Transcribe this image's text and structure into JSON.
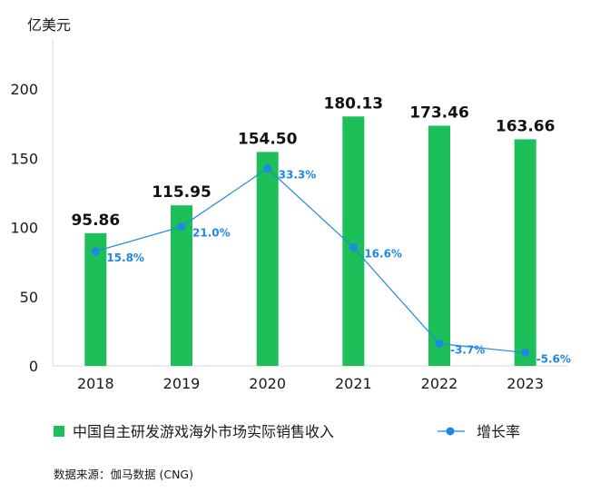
{
  "chart_data": {
    "type": "bar",
    "unit_label": "亿美元",
    "categories": [
      "2018",
      "2019",
      "2020",
      "2021",
      "2022",
      "2023"
    ],
    "series": [
      {
        "name": "中国自主研发游戏海外市场实际销售收入",
        "type": "bar",
        "values": [
          95.86,
          115.95,
          154.5,
          180.13,
          173.46,
          163.66
        ],
        "labels": [
          "95.86",
          "115.95",
          "154.50",
          "180.13",
          "173.46",
          "163.66"
        ],
        "color": "#1dbf59"
      },
      {
        "name": "增长率",
        "type": "line",
        "values": [
          15.8,
          21.0,
          33.3,
          16.6,
          -3.7,
          -5.6
        ],
        "labels": [
          "15.8%",
          "21.0%",
          "33.3%",
          "16.6%",
          "-3.7%",
          "-5.6%"
        ],
        "color": "#1e88e5"
      }
    ],
    "ylim": [
      0,
      200
    ],
    "yticks": [
      "0",
      "50",
      "100",
      "150",
      "200"
    ],
    "legend_position": "bottom",
    "grid": false
  },
  "source_text": "数据来源：伽马数据 (CNG)"
}
